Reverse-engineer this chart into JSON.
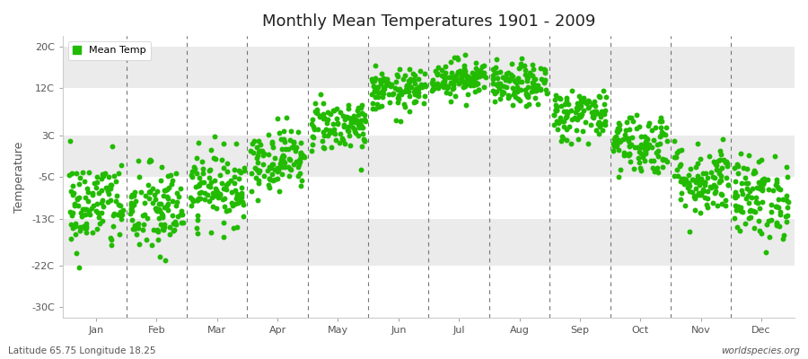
{
  "title": "Monthly Mean Temperatures 1901 - 2009",
  "ylabel": "Temperature",
  "xlabel_bottom_left": "Latitude 65.75 Longitude 18.25",
  "xlabel_bottom_right": "worldspecies.org",
  "dot_color": "#22bb00",
  "bg_color": "#ffffff",
  "band_colors": [
    "#ffffff",
    "#ebebeb",
    "#ffffff",
    "#ebebeb",
    "#ffffff",
    "#ebebeb"
  ],
  "yticks": [
    -30,
    -22,
    -13,
    -5,
    3,
    12,
    20
  ],
  "ytick_labels": [
    "-30C",
    "-22C",
    "-13C",
    "-5C",
    "3C",
    "12C",
    "20C"
  ],
  "ylim": [
    -32,
    22
  ],
  "months": [
    "Jan",
    "Feb",
    "Mar",
    "Apr",
    "May",
    "Jun",
    "Jul",
    "Aug",
    "Sep",
    "Oct",
    "Nov",
    "Dec"
  ],
  "n_years": 109,
  "seed": 42,
  "monthly_means": [
    -10.5,
    -11.5,
    -7.0,
    -1.5,
    5.0,
    11.5,
    14.0,
    12.5,
    7.0,
    1.5,
    -5.5,
    -9.0
  ],
  "monthly_stds": [
    4.5,
    4.5,
    3.5,
    3.0,
    2.5,
    2.0,
    1.8,
    2.0,
    2.5,
    3.0,
    3.5,
    4.0
  ],
  "marker_size": 18,
  "dashed_line_color": "#666666"
}
